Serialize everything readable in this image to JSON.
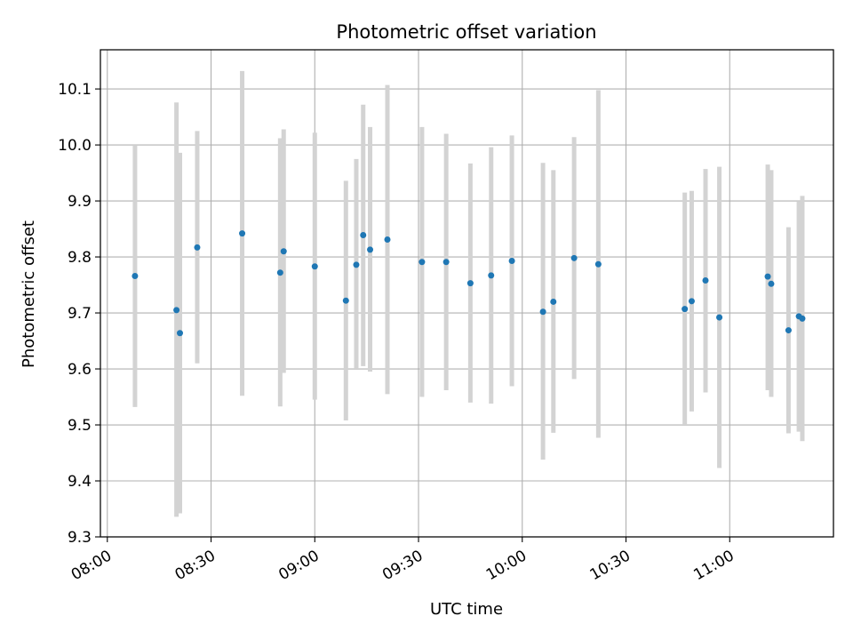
{
  "chart_data": {
    "type": "scatter",
    "title": "Photometric offset variation",
    "xlabel": "UTC time",
    "ylabel": "Photometric offset",
    "xlim": [
      "07:58",
      "11:30"
    ],
    "ylim": [
      9.3,
      10.17
    ],
    "x_ticks": [
      "08:00",
      "08:30",
      "09:00",
      "09:30",
      "10:00",
      "10:30",
      "11:00"
    ],
    "y_ticks": [
      9.3,
      9.4,
      9.5,
      9.6,
      9.7,
      9.8,
      9.9,
      10.0,
      10.1
    ],
    "grid": true,
    "colors": {
      "points": "#1f77b4",
      "error_bars": "#d3d3d3",
      "grid": "#b0b0b0"
    },
    "series": [
      {
        "points": [
          {
            "t": "08:08",
            "y": 9.766,
            "low": 9.532,
            "high": 10.0
          },
          {
            "t": "08:20",
            "y": 9.705,
            "low": 9.336,
            "high": 10.076
          },
          {
            "t": "08:21",
            "y": 9.664,
            "low": 9.342,
            "high": 9.986
          },
          {
            "t": "08:26",
            "y": 9.817,
            "low": 9.61,
            "high": 10.025
          },
          {
            "t": "08:39",
            "y": 9.842,
            "low": 9.552,
            "high": 10.132
          },
          {
            "t": "08:50",
            "y": 9.772,
            "low": 9.533,
            "high": 10.012
          },
          {
            "t": "08:51",
            "y": 9.81,
            "low": 9.593,
            "high": 10.028
          },
          {
            "t": "09:00",
            "y": 9.783,
            "low": 9.545,
            "high": 10.022
          },
          {
            "t": "09:09",
            "y": 9.722,
            "low": 9.508,
            "high": 9.936
          },
          {
            "t": "09:12",
            "y": 9.786,
            "low": 9.6,
            "high": 9.975
          },
          {
            "t": "09:14",
            "y": 9.839,
            "low": 9.605,
            "high": 10.072
          },
          {
            "t": "09:16",
            "y": 9.813,
            "low": 9.595,
            "high": 10.032
          },
          {
            "t": "09:21",
            "y": 9.831,
            "low": 9.555,
            "high": 10.107
          },
          {
            "t": "09:31",
            "y": 9.791,
            "low": 9.55,
            "high": 10.032
          },
          {
            "t": "09:38",
            "y": 9.791,
            "low": 9.562,
            "high": 10.02
          },
          {
            "t": "09:45",
            "y": 9.753,
            "low": 9.54,
            "high": 9.967
          },
          {
            "t": "09:51",
            "y": 9.767,
            "low": 9.538,
            "high": 9.996
          },
          {
            "t": "09:57",
            "y": 9.793,
            "low": 9.569,
            "high": 10.017
          },
          {
            "t": "10:06",
            "y": 9.702,
            "low": 9.438,
            "high": 9.968
          },
          {
            "t": "10:09",
            "y": 9.72,
            "low": 9.486,
            "high": 9.955
          },
          {
            "t": "10:15",
            "y": 9.798,
            "low": 9.582,
            "high": 10.014
          },
          {
            "t": "10:22",
            "y": 9.787,
            "low": 9.477,
            "high": 10.098
          },
          {
            "t": "10:47",
            "y": 9.707,
            "low": 9.5,
            "high": 9.915
          },
          {
            "t": "10:49",
            "y": 9.721,
            "low": 9.524,
            "high": 9.918
          },
          {
            "t": "10:53",
            "y": 9.758,
            "low": 9.558,
            "high": 9.957
          },
          {
            "t": "10:57",
            "y": 9.692,
            "low": 9.423,
            "high": 9.961
          },
          {
            "t": "11:11",
            "y": 9.765,
            "low": 9.562,
            "high": 9.965
          },
          {
            "t": "11:12",
            "y": 9.752,
            "low": 9.55,
            "high": 9.955
          },
          {
            "t": "11:17",
            "y": 9.669,
            "low": 9.485,
            "high": 9.853
          },
          {
            "t": "11:20",
            "y": 9.694,
            "low": 9.488,
            "high": 9.9
          },
          {
            "t": "11:21",
            "y": 9.69,
            "low": 9.471,
            "high": 9.909
          }
        ]
      }
    ]
  }
}
